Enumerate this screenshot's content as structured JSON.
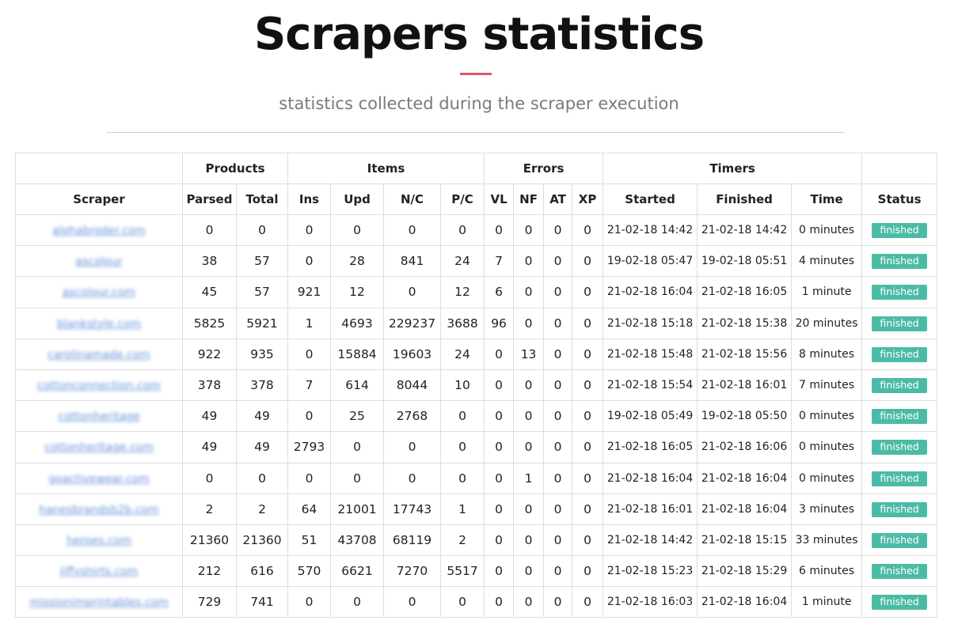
{
  "page": {
    "title": "Scrapers statistics",
    "subtitle": "statistics collected during the scraper execution"
  },
  "table": {
    "group_headers": {
      "products": "Products",
      "items": "Items",
      "errors": "Errors",
      "timers": "Timers"
    },
    "columns": {
      "scraper": "Scraper",
      "parsed": "Parsed",
      "total": "Total",
      "ins": "Ins",
      "upd": "Upd",
      "nc": "N/C",
      "pc": "P/C",
      "vl": "VL",
      "nf": "NF",
      "at": "AT",
      "xp": "XP",
      "started": "Started",
      "finished": "Finished",
      "time": "Time",
      "status": "Status"
    },
    "rows": [
      {
        "scraper": "alohabroder.com",
        "parsed": "0",
        "total": "0",
        "ins": "0",
        "upd": "0",
        "nc": "0",
        "pc": "0",
        "vl": "0",
        "nf": "0",
        "at": "0",
        "xp": "0",
        "started": "21-02-18 14:42",
        "finished": "21-02-18 14:42",
        "time": "0 minutes",
        "status": "finished"
      },
      {
        "scraper": "ascolour",
        "parsed": "38",
        "total": "57",
        "ins": "0",
        "upd": "28",
        "nc": "841",
        "pc": "24",
        "vl": "7",
        "nf": "0",
        "at": "0",
        "xp": "0",
        "started": "19-02-18 05:47",
        "finished": "19-02-18 05:51",
        "time": "4 minutes",
        "status": "finished"
      },
      {
        "scraper": "ascolour.com",
        "parsed": "45",
        "total": "57",
        "ins": "921",
        "upd": "12",
        "nc": "0",
        "pc": "12",
        "vl": "6",
        "nf": "0",
        "at": "0",
        "xp": "0",
        "started": "21-02-18 16:04",
        "finished": "21-02-18 16:05",
        "time": "1 minute",
        "status": "finished"
      },
      {
        "scraper": "blankstyle.com",
        "parsed": "5825",
        "total": "5921",
        "ins": "1",
        "upd": "4693",
        "nc": "229237",
        "pc": "3688",
        "vl": "96",
        "nf": "0",
        "at": "0",
        "xp": "0",
        "started": "21-02-18 15:18",
        "finished": "21-02-18 15:38",
        "time": "20 minutes",
        "status": "finished"
      },
      {
        "scraper": "carolinamade.com",
        "parsed": "922",
        "total": "935",
        "ins": "0",
        "upd": "15884",
        "nc": "19603",
        "pc": "24",
        "vl": "0",
        "nf": "13",
        "at": "0",
        "xp": "0",
        "started": "21-02-18 15:48",
        "finished": "21-02-18 15:56",
        "time": "8 minutes",
        "status": "finished"
      },
      {
        "scraper": "cottonconnection.com",
        "parsed": "378",
        "total": "378",
        "ins": "7",
        "upd": "614",
        "nc": "8044",
        "pc": "10",
        "vl": "0",
        "nf": "0",
        "at": "0",
        "xp": "0",
        "started": "21-02-18 15:54",
        "finished": "21-02-18 16:01",
        "time": "7 minutes",
        "status": "finished"
      },
      {
        "scraper": "cottonheritage",
        "parsed": "49",
        "total": "49",
        "ins": "0",
        "upd": "25",
        "nc": "2768",
        "pc": "0",
        "vl": "0",
        "nf": "0",
        "at": "0",
        "xp": "0",
        "started": "19-02-18 05:49",
        "finished": "19-02-18 05:50",
        "time": "0 minutes",
        "status": "finished"
      },
      {
        "scraper": "cottonheritage.com",
        "parsed": "49",
        "total": "49",
        "ins": "2793",
        "upd": "0",
        "nc": "0",
        "pc": "0",
        "vl": "0",
        "nf": "0",
        "at": "0",
        "xp": "0",
        "started": "21-02-18 16:05",
        "finished": "21-02-18 16:06",
        "time": "0 minutes",
        "status": "finished"
      },
      {
        "scraper": "goactivewear.com",
        "parsed": "0",
        "total": "0",
        "ins": "0",
        "upd": "0",
        "nc": "0",
        "pc": "0",
        "vl": "0",
        "nf": "1",
        "at": "0",
        "xp": "0",
        "started": "21-02-18 16:04",
        "finished": "21-02-18 16:04",
        "time": "0 minutes",
        "status": "finished"
      },
      {
        "scraper": "hanesbrandsb2b.com",
        "parsed": "2",
        "total": "2",
        "ins": "64",
        "upd": "21001",
        "nc": "17743",
        "pc": "1",
        "vl": "0",
        "nf": "0",
        "at": "0",
        "xp": "0",
        "started": "21-02-18 16:01",
        "finished": "21-02-18 16:04",
        "time": "3 minutes",
        "status": "finished"
      },
      {
        "scraper": "heroes.com",
        "parsed": "21360",
        "total": "21360",
        "ins": "51",
        "upd": "43708",
        "nc": "68119",
        "pc": "2",
        "vl": "0",
        "nf": "0",
        "at": "0",
        "xp": "0",
        "started": "21-02-18 14:42",
        "finished": "21-02-18 15:15",
        "time": "33 minutes",
        "status": "finished"
      },
      {
        "scraper": "jiffyshirts.com",
        "parsed": "212",
        "total": "616",
        "ins": "570",
        "upd": "6621",
        "nc": "7270",
        "pc": "5517",
        "vl": "0",
        "nf": "0",
        "at": "0",
        "xp": "0",
        "started": "21-02-18 15:23",
        "finished": "21-02-18 15:29",
        "time": "6 minutes",
        "status": "finished"
      },
      {
        "scraper": "missionimprintables.com",
        "parsed": "729",
        "total": "741",
        "ins": "0",
        "upd": "0",
        "nc": "0",
        "pc": "0",
        "vl": "0",
        "nf": "0",
        "at": "0",
        "xp": "0",
        "started": "21-02-18 16:03",
        "finished": "21-02-18 16:04",
        "time": "1 minute",
        "status": "finished"
      }
    ]
  },
  "colors": {
    "accent": "#e05466",
    "status_finished": "#4cbba6",
    "link": "#4a7fd4"
  }
}
